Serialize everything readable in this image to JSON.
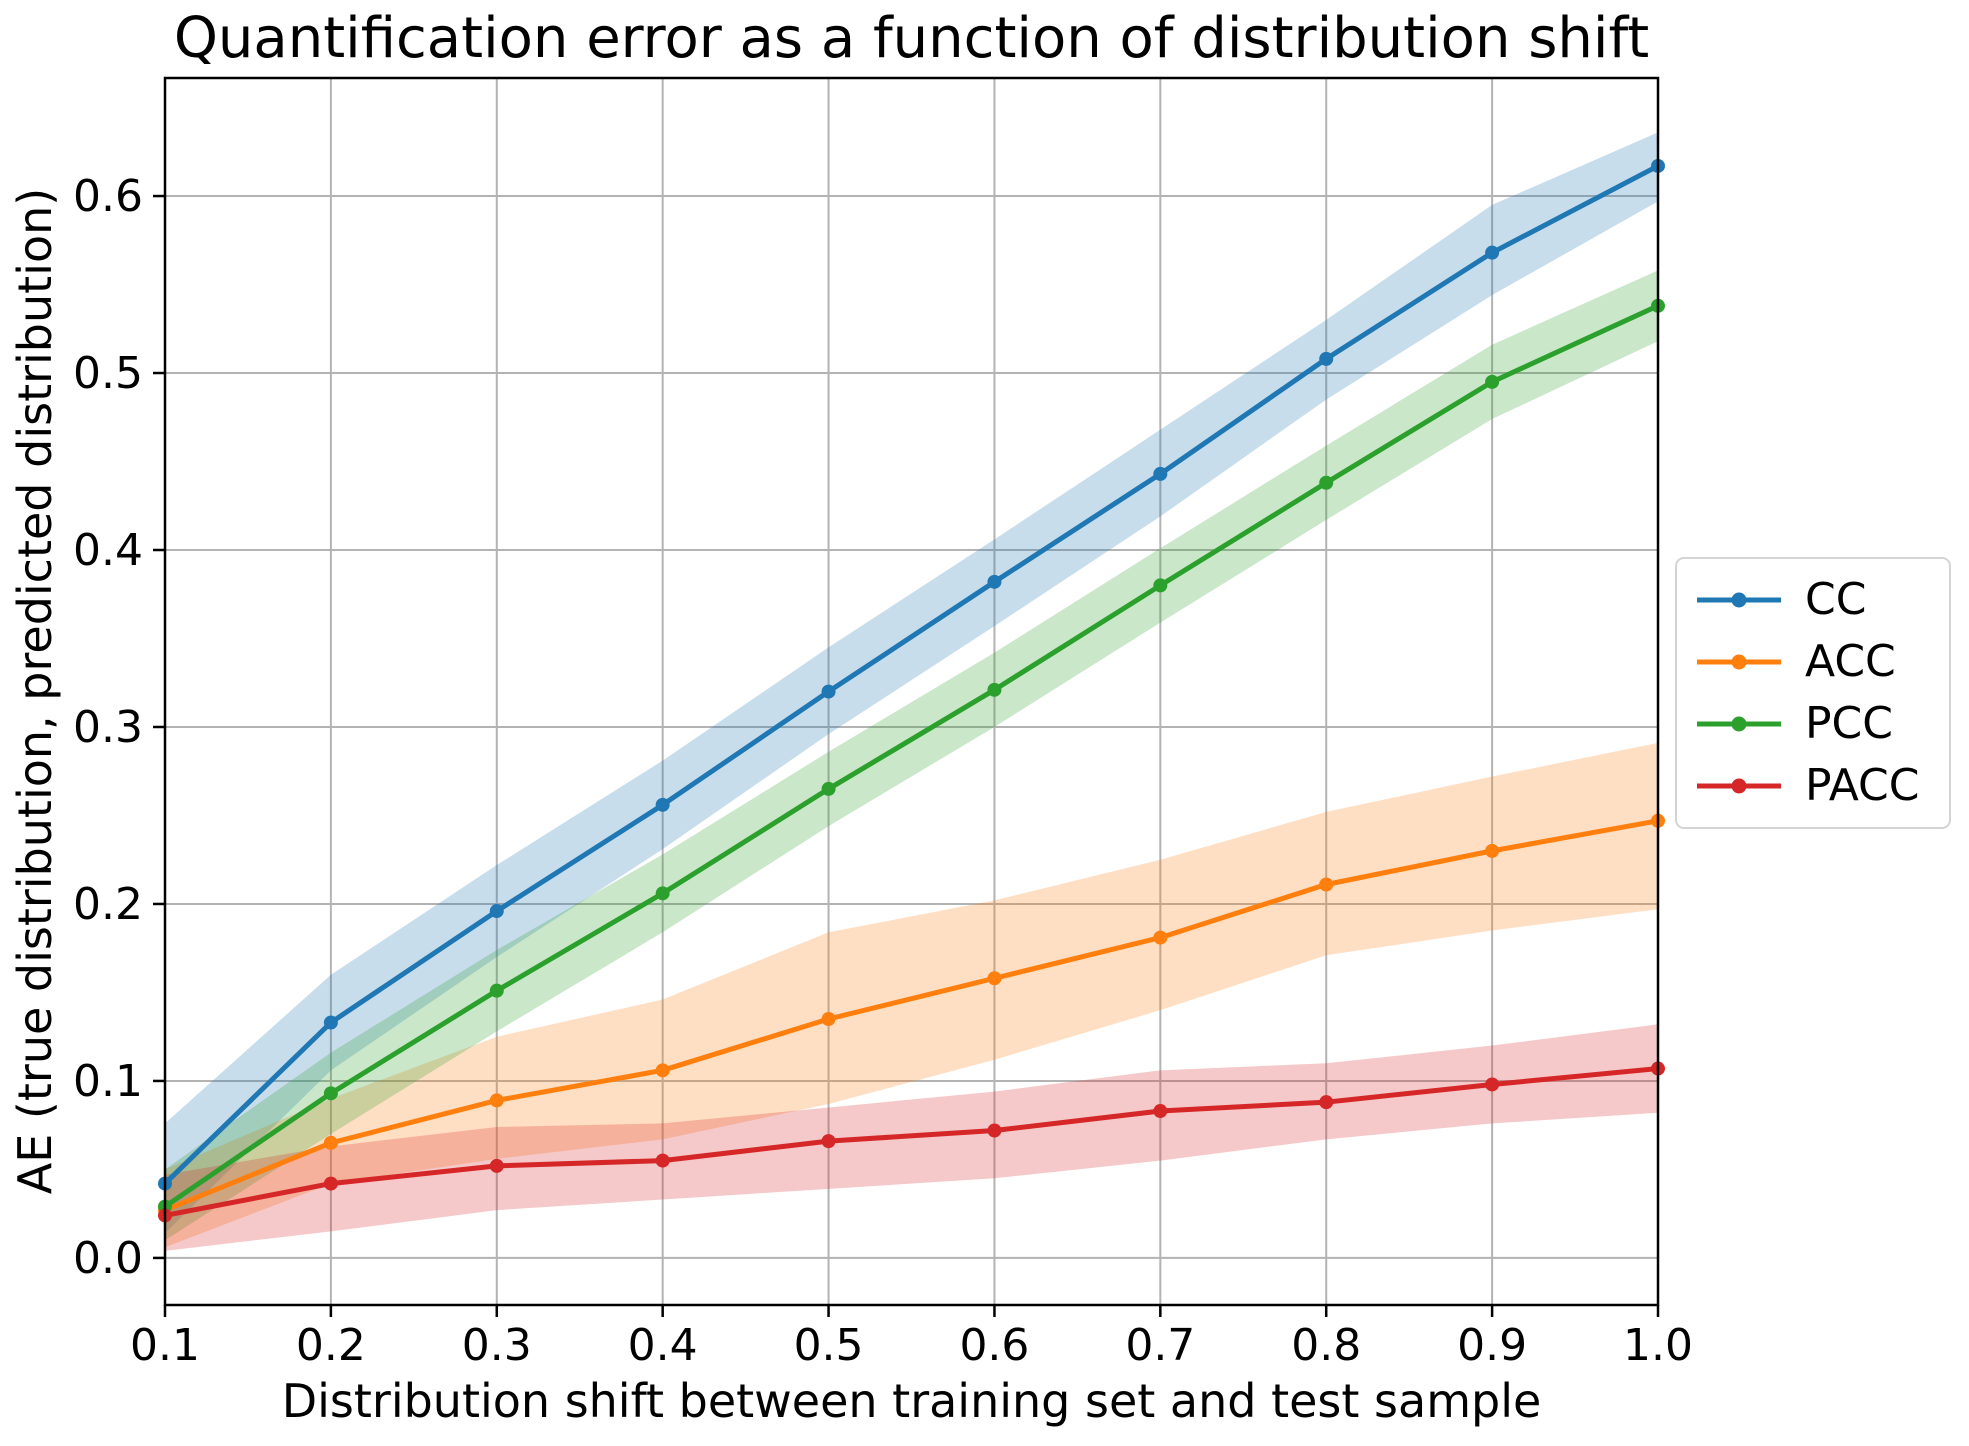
{
  "figure": {
    "title": "Quantification error as a function of distribution shift",
    "xlabel": "Distribution shift between training set and test sample",
    "ylabel": "AE (true distribution, predicted distribution)",
    "background_color": "#ffffff",
    "grid_color": "#b3b3b3",
    "spine_color": "#000000"
  },
  "chart_data": {
    "type": "line",
    "title": "Quantification error as a function of distribution shift",
    "xlabel": "Distribution shift between training set and test sample",
    "ylabel": "AE (true distribution, predicted distribution)",
    "grid": true,
    "legend_position": "outside-right",
    "marker": "circle",
    "band_opacity": 0.25,
    "xlim": [
      0.1,
      1.0
    ],
    "ylim": [
      -0.0266,
      0.6667
    ],
    "x": [
      0.1,
      0.2,
      0.3,
      0.4,
      0.5,
      0.6,
      0.7,
      0.8,
      0.9,
      1.0
    ],
    "x_tick_labels": [
      "0.1",
      "0.2",
      "0.3",
      "0.4",
      "0.5",
      "0.6",
      "0.7",
      "0.8",
      "0.9",
      "1.0"
    ],
    "y_ticks": [
      0.0,
      0.1,
      0.2,
      0.3,
      0.4,
      0.5,
      0.6
    ],
    "y_tick_labels": [
      "0.0",
      "0.1",
      "0.2",
      "0.3",
      "0.4",
      "0.5",
      "0.6"
    ],
    "series": [
      {
        "name": "CC",
        "color": "#1f77b4",
        "values": [
          0.042,
          0.133,
          0.196,
          0.256,
          0.32,
          0.382,
          0.443,
          0.508,
          0.568,
          0.617
        ],
        "band_lower": [
          0.014,
          0.106,
          0.17,
          0.231,
          0.296,
          0.357,
          0.419,
          0.485,
          0.544,
          0.597
        ],
        "band_upper": [
          0.076,
          0.16,
          0.222,
          0.281,
          0.345,
          0.406,
          0.468,
          0.53,
          0.595,
          0.636
        ]
      },
      {
        "name": "ACC",
        "color": "#ff7f0e",
        "values": [
          0.027,
          0.065,
          0.089,
          0.106,
          0.135,
          0.158,
          0.181,
          0.211,
          0.23,
          0.247
        ],
        "band_lower": [
          0.006,
          0.042,
          0.056,
          0.067,
          0.087,
          0.112,
          0.14,
          0.171,
          0.185,
          0.197
        ],
        "band_upper": [
          0.05,
          0.09,
          0.125,
          0.146,
          0.184,
          0.202,
          0.225,
          0.252,
          0.272,
          0.291
        ]
      },
      {
        "name": "PCC",
        "color": "#2ca02c",
        "values": [
          0.029,
          0.093,
          0.151,
          0.206,
          0.265,
          0.321,
          0.38,
          0.438,
          0.495,
          0.538
        ],
        "band_lower": [
          0.01,
          0.07,
          0.128,
          0.184,
          0.244,
          0.3,
          0.359,
          0.417,
          0.474,
          0.518
        ],
        "band_upper": [
          0.05,
          0.116,
          0.174,
          0.228,
          0.286,
          0.342,
          0.401,
          0.459,
          0.516,
          0.558
        ]
      },
      {
        "name": "PACC",
        "color": "#d62728",
        "values": [
          0.024,
          0.042,
          0.052,
          0.055,
          0.066,
          0.072,
          0.083,
          0.088,
          0.098,
          0.107
        ],
        "band_lower": [
          0.004,
          0.015,
          0.027,
          0.033,
          0.039,
          0.045,
          0.055,
          0.067,
          0.076,
          0.082
        ],
        "band_upper": [
          0.047,
          0.063,
          0.074,
          0.076,
          0.085,
          0.094,
          0.106,
          0.11,
          0.12,
          0.132
        ]
      }
    ]
  }
}
